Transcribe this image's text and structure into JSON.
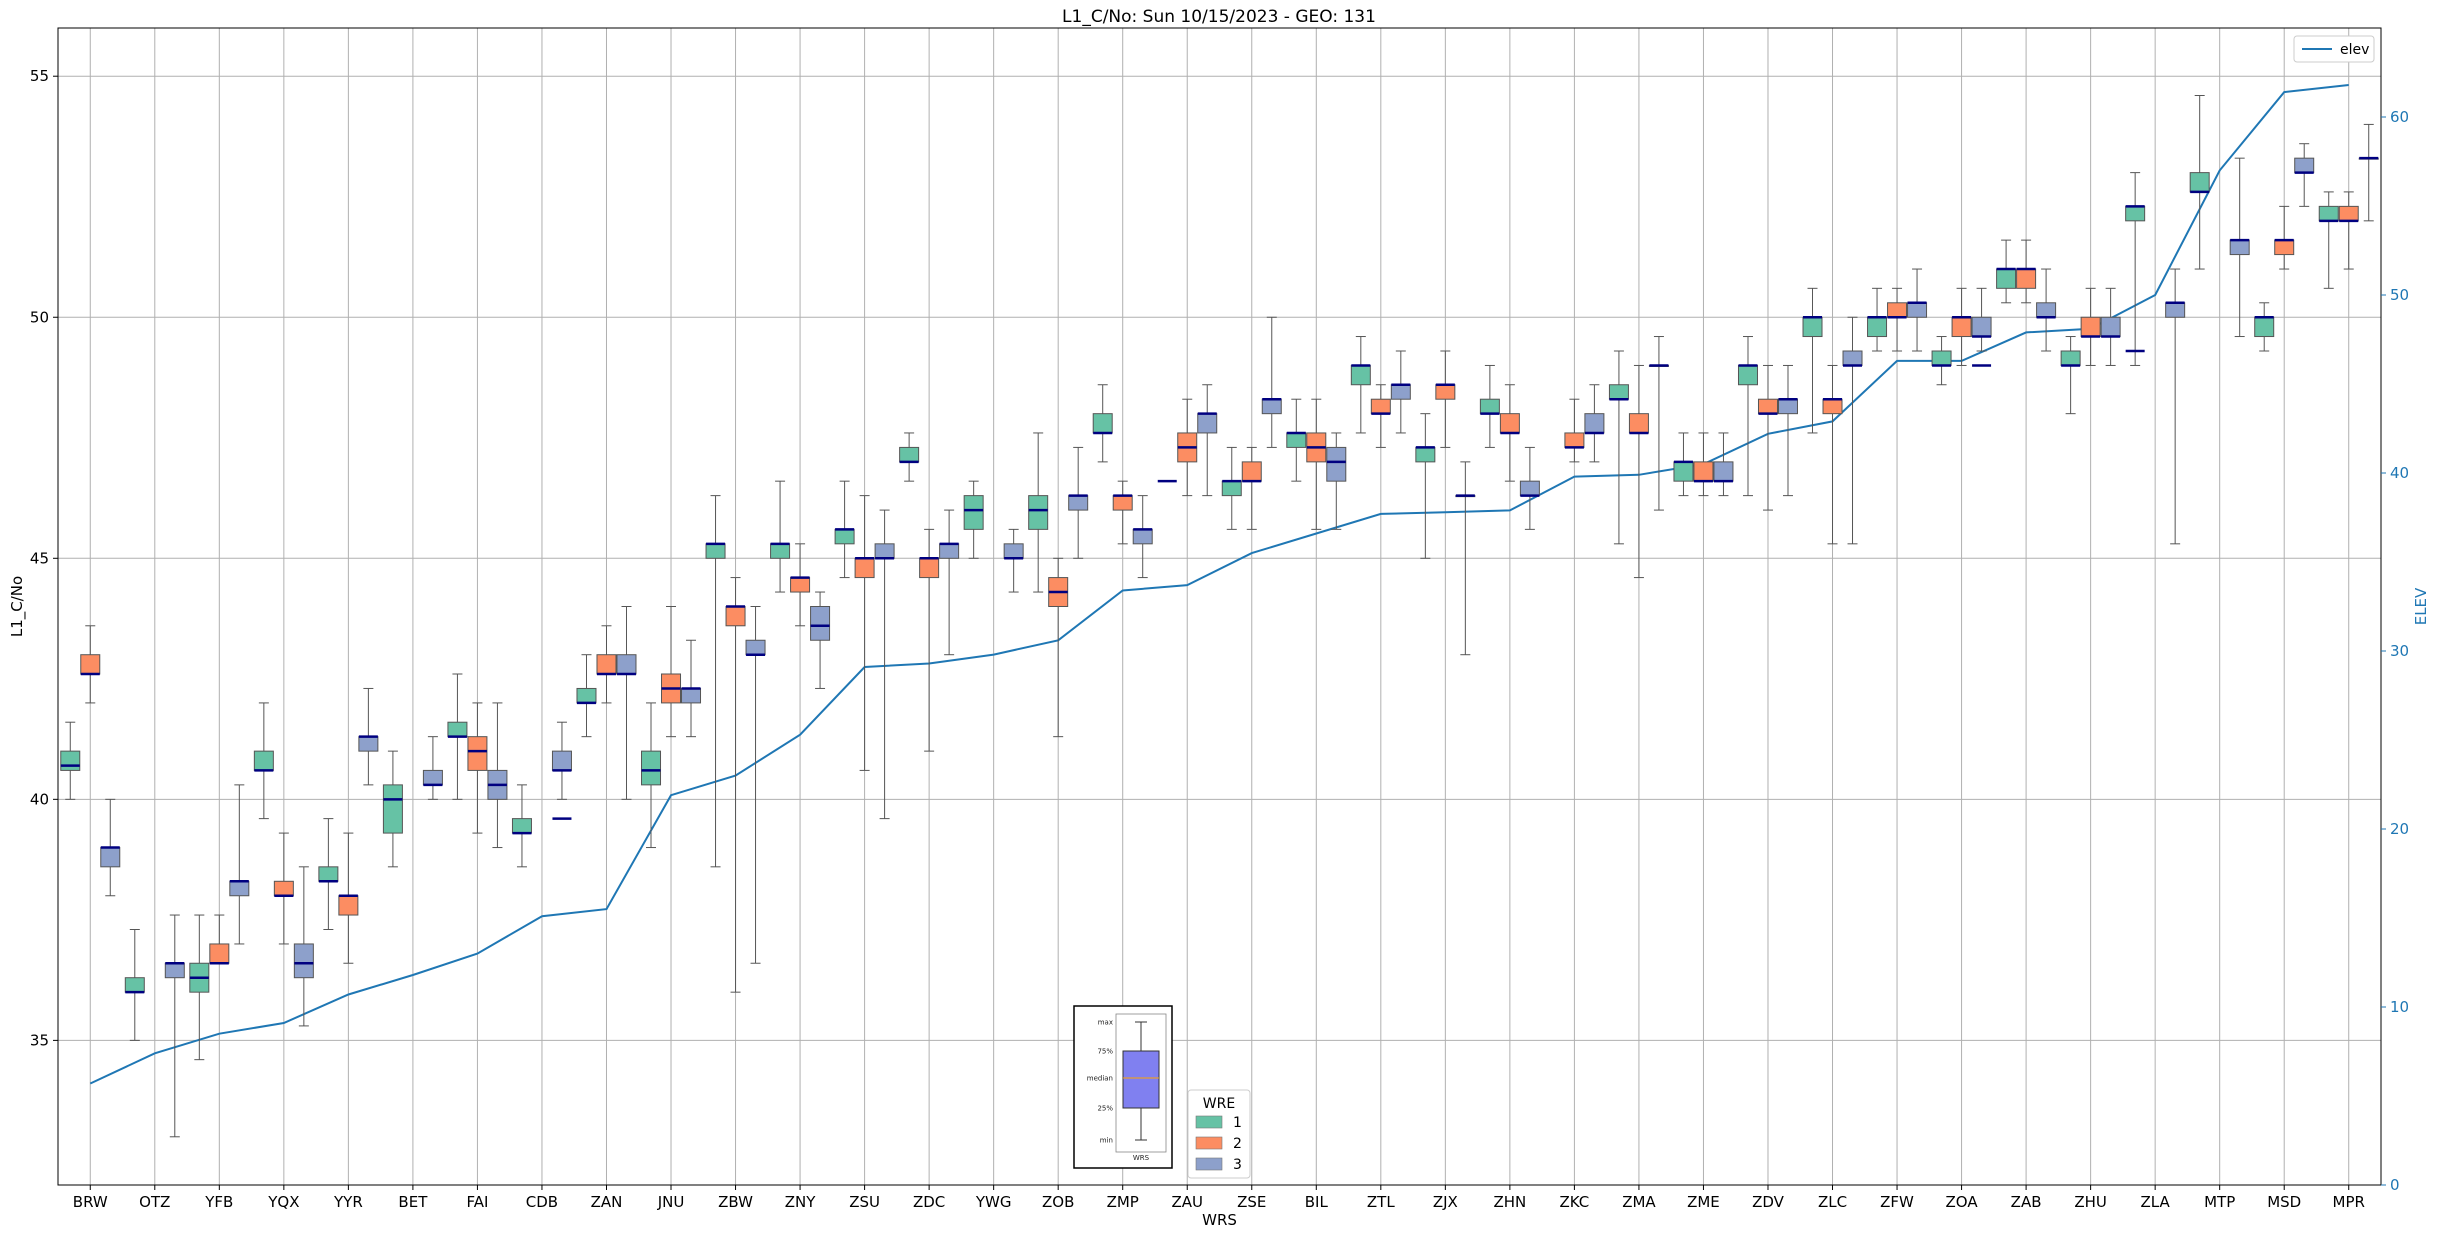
{
  "chart_data": {
    "type": "box",
    "title": "L1_C/No: Sun 10/15/2023 - GEO: 131",
    "xlabel": "WRS",
    "ylabel": "L1_C/No",
    "y2label": "ELEV",
    "ylim": [
      32,
      56
    ],
    "y2lim": [
      0,
      65
    ],
    "yticks": [
      35,
      40,
      45,
      50,
      55
    ],
    "y2ticks": [
      0,
      10,
      20,
      30,
      40,
      50,
      60
    ],
    "grid": true,
    "categories": [
      "BRW",
      "OTZ",
      "YFB",
      "YQX",
      "YYR",
      "BET",
      "FAI",
      "CDB",
      "ZAN",
      "JNU",
      "ZBW",
      "ZNY",
      "ZSU",
      "ZDC",
      "YWG",
      "ZOB",
      "ZMP",
      "ZAU",
      "ZSE",
      "BIL",
      "ZTL",
      "ZJX",
      "ZHN",
      "ZKC",
      "ZMA",
      "ZME",
      "ZDV",
      "ZLC",
      "ZFW",
      "ZOA",
      "ZAB",
      "ZHU",
      "ZLA",
      "MTP",
      "MSD",
      "MPR"
    ],
    "colors": {
      "1": "#66c2a5",
      "2": "#fc8d62",
      "3": "#8da0cb",
      "median": "#000080",
      "whisker": "#555555",
      "elev": "#1f77b4"
    },
    "series": [
      {
        "name": "1",
        "boxes": [
          [
            0,
            40.0,
            40.6,
            40.7,
            41.0,
            41.6
          ],
          [
            1,
            35.0,
            36.0,
            36.0,
            36.3,
            37.3
          ],
          [
            2,
            34.6,
            36.0,
            36.3,
            36.6,
            37.6
          ],
          [
            3,
            39.6,
            40.6,
            40.6,
            41.0,
            42.0
          ],
          [
            4,
            37.3,
            38.3,
            38.3,
            38.6,
            39.6
          ],
          [
            5,
            38.6,
            39.3,
            40.0,
            40.3,
            41.0
          ],
          [
            6,
            40.0,
            41.3,
            41.3,
            41.6,
            42.6
          ],
          [
            7,
            38.6,
            39.3,
            39.3,
            39.6,
            40.3
          ],
          [
            8,
            41.3,
            42.0,
            42.0,
            42.3,
            43.0
          ],
          [
            9,
            39.0,
            40.3,
            40.6,
            41.0,
            42.0
          ],
          [
            10,
            38.6,
            45.0,
            45.3,
            45.3,
            46.3
          ],
          [
            11,
            44.3,
            45.0,
            45.3,
            45.3,
            46.6
          ],
          [
            12,
            44.6,
            45.3,
            45.6,
            45.6,
            46.6
          ],
          [
            13,
            46.6,
            47.0,
            47.0,
            47.3,
            47.6
          ],
          [
            14,
            45.0,
            45.6,
            46.0,
            46.3,
            46.6
          ],
          [
            15,
            44.3,
            45.6,
            46.0,
            46.3,
            47.6
          ],
          [
            16,
            47.0,
            47.6,
            47.6,
            48.0,
            48.6
          ],
          [
            18,
            45.6,
            46.3,
            46.6,
            46.6,
            47.3
          ],
          [
            19,
            46.6,
            47.3,
            47.6,
            47.6,
            48.3
          ],
          [
            20,
            47.6,
            48.6,
            49.0,
            49.0,
            49.6
          ],
          [
            21,
            45.0,
            47.0,
            47.3,
            47.3,
            48.0
          ],
          [
            22,
            47.3,
            48.0,
            48.0,
            48.3,
            49.0
          ],
          [
            24,
            45.3,
            48.3,
            48.3,
            48.6,
            49.3
          ],
          [
            25,
            46.3,
            46.6,
            47.0,
            47.0,
            47.6
          ],
          [
            26,
            46.3,
            48.6,
            49.0,
            49.0,
            49.6
          ],
          [
            27,
            47.6,
            49.6,
            50.0,
            50.0,
            50.6
          ],
          [
            28,
            49.3,
            49.6,
            50.0,
            50.0,
            50.6
          ],
          [
            29,
            48.6,
            49.0,
            49.0,
            49.3,
            49.6
          ],
          [
            30,
            50.3,
            50.6,
            51.0,
            51.0,
            51.6
          ],
          [
            31,
            48.0,
            49.0,
            49.0,
            49.3,
            49.6
          ],
          [
            32,
            49.0,
            52.0,
            52.3,
            52.3,
            53.0
          ],
          [
            33,
            51.0,
            52.6,
            52.6,
            53.0,
            54.6
          ],
          [
            34,
            49.3,
            49.6,
            50.0,
            50.0,
            50.3
          ],
          [
            35,
            50.6,
            52.0,
            52.0,
            52.3,
            52.6
          ]
        ]
      },
      {
        "name": "2",
        "boxes": [
          [
            0,
            42.0,
            42.6,
            42.6,
            43.0,
            43.6
          ],
          [
            2,
            37.0,
            36.6,
            36.6,
            37.0,
            37.6
          ],
          [
            3,
            37.0,
            38.0,
            38.0,
            38.3,
            39.3
          ],
          [
            4,
            36.6,
            37.6,
            38.0,
            38.0,
            39.3
          ],
          [
            6,
            39.3,
            40.6,
            41.0,
            41.3,
            42.0
          ],
          [
            8,
            42.0,
            42.6,
            42.6,
            43.0,
            43.6
          ],
          [
            9,
            41.3,
            42.0,
            42.3,
            42.6,
            44.0
          ],
          [
            10,
            36.0,
            43.6,
            44.0,
            44.0,
            44.6
          ],
          [
            11,
            43.6,
            44.3,
            44.6,
            44.6,
            45.3
          ],
          [
            12,
            40.6,
            44.6,
            45.0,
            45.0,
            46.3
          ],
          [
            13,
            41.0,
            44.6,
            45.0,
            45.0,
            45.6
          ],
          [
            15,
            41.3,
            44.0,
            44.3,
            44.6,
            45.0
          ],
          [
            16,
            45.3,
            46.0,
            46.3,
            46.3,
            46.6
          ],
          [
            17,
            46.3,
            47.0,
            47.3,
            47.6,
            48.3
          ],
          [
            18,
            45.6,
            46.6,
            46.6,
            47.0,
            47.3
          ],
          [
            19,
            45.6,
            47.0,
            47.3,
            47.6,
            48.3
          ],
          [
            20,
            47.3,
            48.0,
            48.0,
            48.3,
            48.6
          ],
          [
            21,
            47.3,
            48.3,
            48.6,
            48.6,
            49.3
          ],
          [
            22,
            46.6,
            47.6,
            47.6,
            48.0,
            48.6
          ],
          [
            23,
            47.0,
            47.3,
            47.3,
            47.6,
            48.3
          ],
          [
            24,
            44.6,
            47.6,
            47.6,
            48.0,
            49.0
          ],
          [
            25,
            46.3,
            46.6,
            46.6,
            47.0,
            47.6
          ],
          [
            26,
            46.0,
            48.0,
            48.0,
            48.3,
            49.0
          ],
          [
            27,
            45.3,
            48.0,
            48.3,
            48.3,
            49.0
          ],
          [
            28,
            49.3,
            50.0,
            50.0,
            50.3,
            50.6
          ],
          [
            29,
            49.0,
            49.6,
            50.0,
            50.0,
            50.6
          ],
          [
            30,
            50.3,
            50.6,
            51.0,
            51.0,
            51.6
          ],
          [
            31,
            49.0,
            49.6,
            49.6,
            50.0,
            50.6
          ],
          [
            34,
            51.0,
            51.3,
            51.6,
            51.6,
            52.3
          ],
          [
            35,
            51.0,
            52.0,
            52.0,
            52.3,
            52.6
          ]
        ]
      },
      {
        "name": "3",
        "boxes": [
          [
            0,
            38.0,
            38.6,
            39.0,
            39.0,
            40.0
          ],
          [
            1,
            33.0,
            36.3,
            36.6,
            36.6,
            37.6
          ],
          [
            2,
            37.0,
            38.0,
            38.3,
            38.3,
            40.3
          ],
          [
            3,
            35.3,
            36.3,
            36.6,
            37.0,
            38.6
          ],
          [
            4,
            40.3,
            41.0,
            41.3,
            41.3,
            42.3
          ],
          [
            5,
            40.0,
            40.3,
            40.3,
            40.6,
            41.3
          ],
          [
            6,
            39.0,
            40.0,
            40.3,
            40.6,
            42.0
          ],
          [
            7,
            40.0,
            40.6,
            40.6,
            41.0,
            41.6
          ],
          [
            8,
            40.0,
            42.6,
            42.6,
            43.0,
            44.0
          ],
          [
            9,
            41.3,
            42.0,
            42.3,
            42.3,
            43.3
          ],
          [
            10,
            36.6,
            43.0,
            43.0,
            43.3,
            44.0
          ],
          [
            11,
            42.3,
            43.3,
            43.6,
            44.0,
            44.3
          ],
          [
            12,
            39.6,
            45.0,
            45.0,
            45.3,
            46.0
          ],
          [
            13,
            43.0,
            45.0,
            45.3,
            45.3,
            46.0
          ],
          [
            14,
            44.3,
            45.0,
            45.0,
            45.3,
            45.6
          ],
          [
            15,
            45.0,
            46.0,
            46.3,
            46.3,
            47.3
          ],
          [
            16,
            44.6,
            45.3,
            45.6,
            45.6,
            46.3
          ],
          [
            17,
            46.3,
            47.6,
            48.0,
            48.0,
            48.6
          ],
          [
            18,
            47.3,
            48.0,
            48.3,
            48.3,
            50.0
          ],
          [
            19,
            45.6,
            46.6,
            47.0,
            47.3,
            47.6
          ],
          [
            20,
            47.6,
            48.3,
            48.6,
            48.6,
            49.3
          ],
          [
            21,
            43.0,
            46.3,
            46.3,
            46.3,
            47.0
          ],
          [
            22,
            45.6,
            46.3,
            46.3,
            46.6,
            47.3
          ],
          [
            23,
            47.0,
            47.6,
            47.6,
            48.0,
            48.6
          ],
          [
            24,
            46.0,
            49.0,
            49.0,
            49.0,
            49.6
          ],
          [
            25,
            46.3,
            46.6,
            46.6,
            47.0,
            47.6
          ],
          [
            26,
            46.3,
            48.0,
            48.3,
            48.3,
            49.0
          ],
          [
            27,
            45.3,
            49.0,
            49.0,
            49.3,
            50.0
          ],
          [
            28,
            49.3,
            50.0,
            50.3,
            50.3,
            51.0
          ],
          [
            29,
            49.3,
            49.6,
            49.6,
            50.0,
            50.6
          ],
          [
            30,
            49.3,
            50.0,
            50.0,
            50.3,
            51.0
          ],
          [
            31,
            49.0,
            49.6,
            49.6,
            50.0,
            50.6
          ],
          [
            32,
            45.3,
            50.0,
            50.3,
            50.3,
            51.0
          ],
          [
            33,
            49.6,
            51.3,
            51.6,
            51.6,
            53.3
          ],
          [
            34,
            52.3,
            53.0,
            53.0,
            53.3,
            53.6
          ],
          [
            35,
            52.0,
            53.3,
            53.3,
            53.3,
            54.0
          ]
        ]
      }
    ],
    "single_medians": [
      {
        "series": "3",
        "cat": 7,
        "value": 39.6
      },
      {
        "series": "1",
        "cat": 17,
        "value": 46.6
      },
      {
        "series": "3",
        "cat": 29,
        "value": 49.0
      },
      {
        "series": "1",
        "cat": 32,
        "value": 49.3
      }
    ],
    "elev": {
      "name": "elev",
      "values": [
        5.7,
        7.4,
        8.5,
        9.1,
        10.7,
        11.8,
        13.0,
        15.1,
        15.5,
        21.9,
        23.0,
        25.3,
        29.1,
        29.3,
        29.8,
        30.6,
        33.4,
        33.7,
        35.5,
        36.6,
        37.7,
        37.8,
        37.9,
        39.8,
        39.9,
        40.5,
        42.2,
        42.9,
        46.3,
        46.3,
        47.9,
        48.1,
        50.0,
        57.0,
        61.4,
        61.8
      ]
    },
    "legend_elev": {
      "label": "elev",
      "placement": "top-right"
    },
    "legend_wre": {
      "title": "WRE",
      "items": [
        "1",
        "2",
        "3"
      ],
      "placement": "bottom-center"
    },
    "inset_key": {
      "labels": [
        "max",
        "75%",
        "median",
        "25%",
        "min"
      ],
      "xlabel": "WRS"
    }
  }
}
